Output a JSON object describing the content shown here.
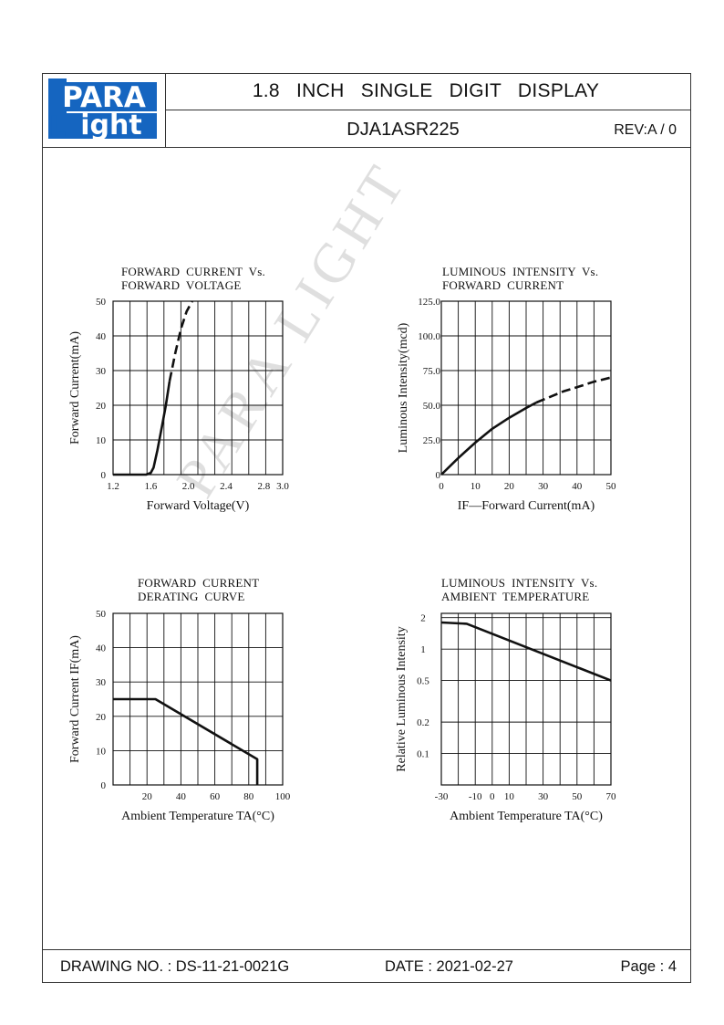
{
  "header": {
    "logo_top": "PARA",
    "logo_bottom": "ight",
    "logo_l": "L",
    "title": "1.8 INCH SINGLE DIGIT DISPLAY",
    "part_number": "DJA1ASR225",
    "revision": "REV:A / 0"
  },
  "watermark": "PARA LIGHT",
  "footer": {
    "drawing_no": "DRAWING NO. : DS-11-21-0021G",
    "date": "DATE : 2021-02-27",
    "page": "Page : 4"
  },
  "chart_data": [
    {
      "type": "line",
      "title": "FORWARD  CURRENT  Vs.\nFORWARD  VOLTAGE",
      "xlabel": "Forward  Voltage(V)",
      "ylabel": "Forward  Current(mA)",
      "xlim": [
        1.2,
        3.0
      ],
      "ylim": [
        0,
        50
      ],
      "x_ticks": [
        "1.2",
        "1.6",
        "2.0",
        "2.4",
        "2.8",
        "3.0"
      ],
      "y_ticks": [
        "0",
        "10",
        "20",
        "30",
        "40",
        "50"
      ],
      "series": [
        {
          "style": "solid",
          "x": [
            1.2,
            1.55,
            1.6,
            1.63,
            1.67,
            1.72,
            1.76,
            1.8
          ],
          "y": [
            0,
            0,
            0.5,
            2,
            7,
            14,
            20,
            27
          ]
        },
        {
          "style": "dashed",
          "x": [
            1.8,
            1.86,
            1.92,
            1.98,
            2.04
          ],
          "y": [
            27,
            35,
            42,
            47,
            50
          ]
        }
      ],
      "grid": true
    },
    {
      "type": "line",
      "title": "LUMINOUS  INTENSITY  Vs.\nFORWARD  CURRENT",
      "xlabel": "IF—Forward  Current(mA)",
      "ylabel": "Luminous  Intensity(mcd)",
      "xlim": [
        0,
        50
      ],
      "ylim": [
        0,
        125
      ],
      "x_ticks": [
        "0",
        "10",
        "20",
        "30",
        "40",
        "50"
      ],
      "y_ticks": [
        "0",
        "25.0",
        "50.0",
        "75.0",
        "100.0",
        "125.0"
      ],
      "series": [
        {
          "style": "solid",
          "x": [
            0,
            5,
            10,
            15,
            20,
            25,
            28
          ],
          "y": [
            0,
            12,
            23,
            33,
            41,
            48,
            52
          ]
        },
        {
          "style": "dashed",
          "x": [
            28,
            32,
            36,
            40,
            45,
            50
          ],
          "y": [
            52,
            56,
            60,
            63,
            67,
            70
          ]
        }
      ],
      "grid": true
    },
    {
      "type": "line",
      "title": "FORWARD  CURRENT\nDERATING  CURVE",
      "xlabel": "Ambient  Temperature  TA(°C)",
      "ylabel": "Forward  Current  IF(mA)",
      "xlim": [
        0,
        100
      ],
      "ylim": [
        0,
        50
      ],
      "x_ticks": [
        "20",
        "40",
        "60",
        "80",
        "100"
      ],
      "y_ticks": [
        "0",
        "10",
        "20",
        "30",
        "40",
        "50"
      ],
      "series": [
        {
          "style": "solid",
          "x": [
            0,
            25,
            85,
            85
          ],
          "y": [
            25,
            25,
            7.5,
            0
          ]
        }
      ],
      "grid": true
    },
    {
      "type": "line",
      "title": "LUMINOUS  INTENSITY  Vs.\nAMBIENT  TEMPERATURE",
      "xlabel": "Ambient  Temperature  TA(°C)",
      "ylabel": "Relative  Luminous  Intensity",
      "xlim": [
        -30,
        70
      ],
      "ylim": [
        0,
        2
      ],
      "x_ticks": [
        "-30",
        "-10",
        "0",
        "10",
        "30",
        "50",
        "70"
      ],
      "y_ticks": [
        "0.1",
        "0.2",
        "0.5",
        "1",
        "2"
      ],
      "y_scale": "log",
      "series": [
        {
          "style": "solid",
          "x": [
            -30,
            -15,
            70
          ],
          "y": [
            1.8,
            1.75,
            0.5
          ]
        }
      ],
      "grid": true
    }
  ]
}
